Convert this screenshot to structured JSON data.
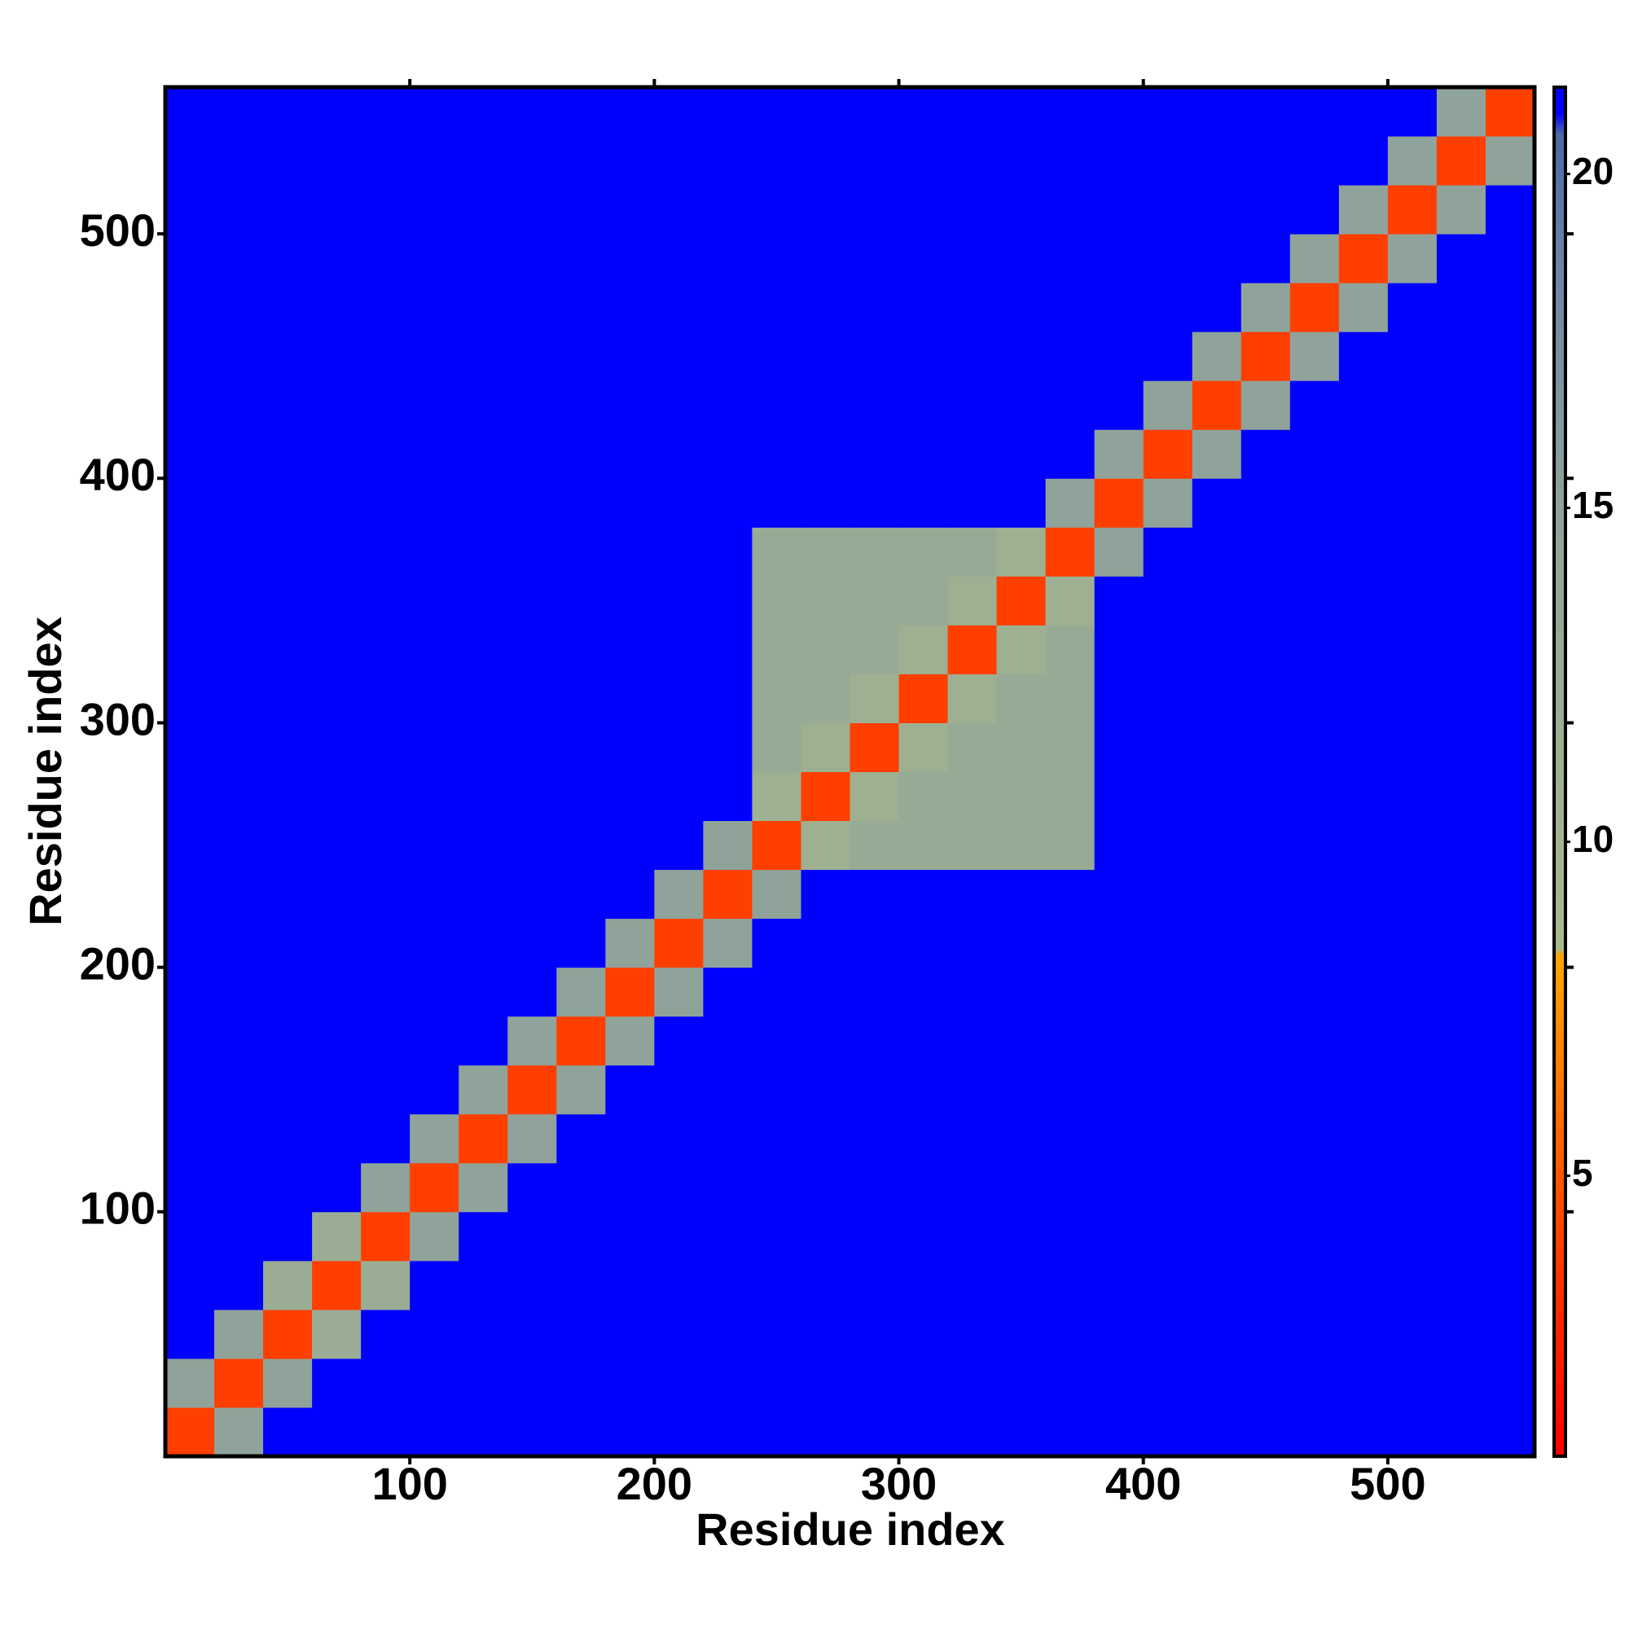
{
  "chart_data": {
    "type": "heatmap",
    "xlabel": "Residue index",
    "ylabel": "Residue index",
    "xlim": [
      0,
      560
    ],
    "ylim": [
      0,
      560
    ],
    "xticks": [
      100,
      200,
      300,
      400,
      500
    ],
    "yticks": [
      100,
      200,
      300,
      400,
      500
    ],
    "xbins": [
      0,
      20,
      40,
      60,
      80,
      100,
      120,
      140,
      160,
      180,
      200,
      220,
      240,
      260,
      280,
      300,
      320,
      340,
      360,
      380,
      400,
      420,
      440,
      460,
      480,
      500,
      520,
      540,
      560
    ],
    "ybins": [
      0,
      20,
      40,
      60,
      80,
      100,
      120,
      140,
      160,
      180,
      200,
      220,
      240,
      260,
      280,
      300,
      320,
      340,
      360,
      380,
      400,
      420,
      440,
      460,
      480,
      500,
      520,
      540,
      560
    ],
    "colorbar_lim": [
      0.8,
      21.3
    ],
    "colorbar_ticks": [
      5,
      10,
      15,
      20
    ],
    "colorscale": [
      [
        0.8,
        "#ff0000"
      ],
      [
        3.5,
        "#ff3300"
      ],
      [
        8.3,
        "#ffa500"
      ],
      [
        8.4,
        "#a8b98c"
      ],
      [
        15,
        "#8fa39a"
      ],
      [
        18.5,
        "#6d86a6"
      ],
      [
        20.6,
        "#4a6aa6"
      ],
      [
        20.9,
        "#0000ff"
      ],
      [
        21.3,
        "#0000ff"
      ]
    ],
    "values": [
      [
        4,
        15,
        21,
        21,
        21,
        21,
        21,
        21,
        21,
        21,
        21,
        21,
        21,
        21,
        21,
        21,
        21,
        21,
        21,
        21,
        21,
        21,
        21,
        21,
        21,
        21,
        21,
        21
      ],
      [
        15,
        4,
        15,
        21,
        21,
        21,
        21,
        21,
        21,
        21,
        21,
        21,
        21,
        21,
        21,
        21,
        21,
        21,
        21,
        21,
        21,
        21,
        21,
        21,
        21,
        21,
        21,
        21
      ],
      [
        21,
        15,
        4,
        12,
        21,
        21,
        21,
        21,
        21,
        21,
        21,
        21,
        21,
        21,
        21,
        21,
        21,
        21,
        21,
        21,
        21,
        21,
        21,
        21,
        21,
        21,
        21,
        21
      ],
      [
        21,
        21,
        12,
        4,
        12,
        21,
        21,
        21,
        21,
        21,
        21,
        21,
        21,
        21,
        21,
        21,
        21,
        21,
        21,
        21,
        21,
        21,
        21,
        21,
        21,
        21,
        21,
        21
      ],
      [
        21,
        21,
        21,
        12,
        4,
        15,
        21,
        21,
        21,
        21,
        21,
        21,
        21,
        21,
        21,
        21,
        21,
        21,
        21,
        21,
        21,
        21,
        21,
        21,
        21,
        21,
        21,
        21
      ],
      [
        21,
        21,
        21,
        21,
        15,
        4,
        15,
        21,
        21,
        21,
        21,
        21,
        21,
        21,
        21,
        21,
        21,
        21,
        21,
        21,
        21,
        21,
        21,
        21,
        21,
        21,
        21,
        21
      ],
      [
        21,
        21,
        21,
        21,
        21,
        15,
        4,
        15,
        21,
        21,
        21,
        21,
        21,
        21,
        21,
        21,
        21,
        21,
        21,
        21,
        21,
        21,
        21,
        21,
        21,
        21,
        21,
        21
      ],
      [
        21,
        21,
        21,
        21,
        21,
        21,
        15,
        4,
        15,
        21,
        21,
        21,
        21,
        21,
        21,
        21,
        21,
        21,
        21,
        21,
        21,
        21,
        21,
        21,
        21,
        21,
        21,
        21
      ],
      [
        21,
        21,
        21,
        21,
        21,
        21,
        21,
        15,
        4,
        15,
        21,
        21,
        21,
        21,
        21,
        21,
        21,
        21,
        21,
        21,
        21,
        21,
        21,
        21,
        21,
        21,
        21,
        21
      ],
      [
        21,
        21,
        21,
        21,
        21,
        21,
        21,
        21,
        15,
        4,
        15,
        21,
        21,
        21,
        21,
        21,
        21,
        21,
        21,
        21,
        21,
        21,
        21,
        21,
        21,
        21,
        21,
        21
      ],
      [
        21,
        21,
        21,
        21,
        21,
        21,
        21,
        21,
        21,
        15,
        4,
        15,
        21,
        21,
        21,
        21,
        21,
        21,
        21,
        21,
        21,
        21,
        21,
        21,
        21,
        21,
        21,
        21
      ],
      [
        21,
        21,
        21,
        21,
        21,
        21,
        21,
        21,
        21,
        21,
        15,
        4,
        15,
        21,
        21,
        21,
        21,
        21,
        21,
        21,
        21,
        21,
        21,
        21,
        21,
        21,
        21,
        21
      ],
      [
        21,
        21,
        21,
        21,
        21,
        21,
        21,
        21,
        21,
        21,
        21,
        15,
        4,
        11,
        13,
        13,
        13,
        13,
        13,
        21,
        21,
        21,
        21,
        21,
        21,
        21,
        21,
        21
      ],
      [
        21,
        21,
        21,
        21,
        21,
        21,
        21,
        21,
        21,
        21,
        21,
        21,
        11,
        4,
        11,
        13,
        13,
        13,
        13,
        21,
        21,
        21,
        21,
        21,
        21,
        21,
        21,
        21
      ],
      [
        21,
        21,
        21,
        21,
        21,
        21,
        21,
        21,
        21,
        21,
        21,
        21,
        13,
        11,
        4,
        11,
        13,
        13,
        13,
        21,
        21,
        21,
        21,
        21,
        21,
        21,
        21,
        21
      ],
      [
        21,
        21,
        21,
        21,
        21,
        21,
        21,
        21,
        21,
        21,
        21,
        21,
        13,
        13,
        11,
        4,
        11,
        13,
        13,
        21,
        21,
        21,
        21,
        21,
        21,
        21,
        21,
        21
      ],
      [
        21,
        21,
        21,
        21,
        21,
        21,
        21,
        21,
        21,
        21,
        21,
        21,
        13,
        13,
        13,
        11,
        4,
        11,
        13,
        21,
        21,
        21,
        21,
        21,
        21,
        21,
        21,
        21
      ],
      [
        21,
        21,
        21,
        21,
        21,
        21,
        21,
        21,
        21,
        21,
        21,
        21,
        13,
        13,
        13,
        13,
        11,
        4,
        11,
        21,
        21,
        21,
        21,
        21,
        21,
        21,
        21,
        21
      ],
      [
        21,
        21,
        21,
        21,
        21,
        21,
        21,
        21,
        21,
        21,
        21,
        21,
        13,
        13,
        13,
        13,
        13,
        11,
        4,
        15,
        21,
        21,
        21,
        21,
        21,
        21,
        21,
        21
      ],
      [
        21,
        21,
        21,
        21,
        21,
        21,
        21,
        21,
        21,
        21,
        21,
        21,
        21,
        21,
        21,
        21,
        21,
        21,
        15,
        4,
        15,
        21,
        21,
        21,
        21,
        21,
        21,
        21
      ],
      [
        21,
        21,
        21,
        21,
        21,
        21,
        21,
        21,
        21,
        21,
        21,
        21,
        21,
        21,
        21,
        21,
        21,
        21,
        21,
        15,
        4,
        15,
        21,
        21,
        21,
        21,
        21,
        21
      ],
      [
        21,
        21,
        21,
        21,
        21,
        21,
        21,
        21,
        21,
        21,
        21,
        21,
        21,
        21,
        21,
        21,
        21,
        21,
        21,
        21,
        15,
        4,
        15,
        21,
        21,
        21,
        21,
        21
      ],
      [
        21,
        21,
        21,
        21,
        21,
        21,
        21,
        21,
        21,
        21,
        21,
        21,
        21,
        21,
        21,
        21,
        21,
        21,
        21,
        21,
        21,
        15,
        4,
        15,
        21,
        21,
        21,
        21
      ],
      [
        21,
        21,
        21,
        21,
        21,
        21,
        21,
        21,
        21,
        21,
        21,
        21,
        21,
        21,
        21,
        21,
        21,
        21,
        21,
        21,
        21,
        21,
        15,
        4,
        15,
        21,
        21,
        21
      ],
      [
        21,
        21,
        21,
        21,
        21,
        21,
        21,
        21,
        21,
        21,
        21,
        21,
        21,
        21,
        21,
        21,
        21,
        21,
        21,
        21,
        21,
        21,
        21,
        15,
        4,
        15,
        21,
        21
      ],
      [
        21,
        21,
        21,
        21,
        21,
        21,
        21,
        21,
        21,
        21,
        21,
        21,
        21,
        21,
        21,
        21,
        21,
        21,
        21,
        21,
        21,
        21,
        21,
        21,
        15,
        4,
        15,
        21
      ],
      [
        21,
        21,
        21,
        21,
        21,
        21,
        21,
        21,
        21,
        21,
        21,
        21,
        21,
        21,
        21,
        21,
        21,
        21,
        21,
        21,
        21,
        21,
        21,
        21,
        21,
        15,
        4,
        15
      ],
      [
        21,
        21,
        21,
        21,
        21,
        21,
        21,
        21,
        21,
        21,
        21,
        21,
        21,
        21,
        21,
        21,
        21,
        21,
        21,
        21,
        21,
        21,
        21,
        21,
        21,
        21,
        15,
        4
      ]
    ]
  }
}
